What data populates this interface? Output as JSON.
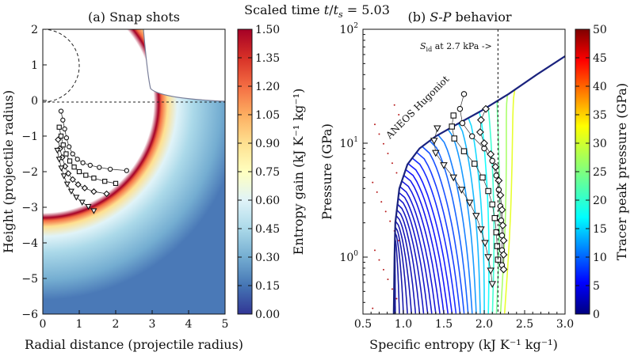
{
  "figure": {
    "suptitle": "Scaled time t/t_s = 5.03",
    "suptitle_parts": {
      "prefix": "Scaled time ",
      "t": "t",
      "slash": "/",
      "ts": "t",
      "ts_sub": "s",
      "suffix": " =  5.03"
    }
  },
  "chart_data": [
    {
      "type": "heatmap",
      "title": "(a) Snap shots",
      "xlabel": "Radial distance (projectile radius)",
      "ylabel": "Height (projectile radius)",
      "xlim": [
        0,
        5
      ],
      "ylim": [
        -6,
        2
      ],
      "xticks": [
        "0",
        "1",
        "2",
        "3",
        "4",
        "5"
      ],
      "yticks": [
        "2",
        "1",
        "0",
        "−1",
        "−2",
        "−3",
        "−4",
        "−5",
        "−6"
      ],
      "colorbar": {
        "label": "Entropy gain (kJ K⁻¹ kg⁻¹)",
        "range": [
          0,
          1.5
        ],
        "ticks": [
          "1.50",
          "1.35",
          "1.20",
          "1.05",
          "0.90",
          "0.75",
          "0.60",
          "0.45",
          "0.30",
          "0.15",
          "0.00"
        ],
        "colormap": "RdYlBu_r"
      },
      "tracer_sets": [
        {
          "marker": "circle",
          "points": [
            [
              0.5,
              -0.3
            ],
            [
              0.55,
              -0.55
            ],
            [
              0.6,
              -0.8
            ],
            [
              0.65,
              -1.05
            ],
            [
              0.72,
              -1.3
            ],
            [
              0.82,
              -1.5
            ],
            [
              0.95,
              -1.65
            ],
            [
              1.1,
              -1.75
            ],
            [
              1.3,
              -1.82
            ],
            [
              1.55,
              -1.88
            ],
            [
              1.85,
              -1.93
            ],
            [
              2.3,
              -1.97
            ]
          ]
        },
        {
          "marker": "square",
          "points": [
            [
              0.45,
              -0.75
            ],
            [
              0.5,
              -1.0
            ],
            [
              0.56,
              -1.25
            ],
            [
              0.64,
              -1.5
            ],
            [
              0.74,
              -1.7
            ],
            [
              0.86,
              -1.87
            ],
            [
              1.0,
              -2.0
            ],
            [
              1.18,
              -2.1
            ],
            [
              1.4,
              -2.18
            ],
            [
              1.7,
              -2.27
            ],
            [
              2.0,
              -2.33
            ]
          ]
        },
        {
          "marker": "diamond",
          "points": [
            [
              0.42,
              -1.1
            ],
            [
              0.47,
              -1.35
            ],
            [
              0.53,
              -1.6
            ],
            [
              0.61,
              -1.85
            ],
            [
              0.7,
              -2.05
            ],
            [
              0.82,
              -2.22
            ],
            [
              0.97,
              -2.36
            ],
            [
              1.15,
              -2.46
            ],
            [
              1.4,
              -2.56
            ],
            [
              1.75,
              -2.62
            ]
          ]
        },
        {
          "marker": "triangle",
          "points": [
            [
              0.4,
              -1.4
            ],
            [
              0.45,
              -1.65
            ],
            [
              0.51,
              -1.9
            ],
            [
              0.58,
              -2.12
            ],
            [
              0.67,
              -2.35
            ],
            [
              0.78,
              -2.55
            ],
            [
              0.92,
              -2.72
            ],
            [
              1.08,
              -2.86
            ],
            [
              1.25,
              -2.98
            ],
            [
              1.4,
              -3.1
            ]
          ]
        }
      ],
      "outer_profile": "crater-lip"
    },
    {
      "type": "line",
      "title": "(b) S-P behavior",
      "title_parts": {
        "prefix": "(b) ",
        "s": "S",
        "dash": "-",
        "p": "P",
        "suffix": " behavior"
      },
      "xlabel": "Specific entropy (kJ K⁻¹ kg⁻¹)",
      "ylabel": "Pressure (GPa)",
      "xlim": [
        0.5,
        3.0
      ],
      "ylim_log10": [
        -0.5,
        2
      ],
      "y_scale": "log",
      "xticks": [
        "0.5",
        "1.0",
        "1.5",
        "2.0",
        "2.5",
        "3.0"
      ],
      "yticks": [
        {
          "base": "10",
          "exp": "2",
          "value": 100
        },
        {
          "base": "10",
          "exp": "1",
          "value": 10
        },
        {
          "base": "10",
          "exp": "0",
          "value": 1
        }
      ],
      "annotations": {
        "hugoniot": "ANEOS Hugoniot",
        "sid_prefix": "S",
        "sid_sub": "id",
        "sid_suffix": " at 2.7 kPa ->",
        "sid_x": 2.17
      },
      "hugoniot": [
        [
          0.88,
          0.3
        ],
        [
          0.89,
          1.0
        ],
        [
          0.9,
          2.0
        ],
        [
          0.95,
          4.0
        ],
        [
          1.05,
          6.5
        ],
        [
          1.2,
          9.0
        ],
        [
          1.4,
          11.5
        ],
        [
          1.65,
          14.5
        ],
        [
          1.95,
          19.0
        ],
        [
          2.3,
          27.0
        ],
        [
          2.65,
          40.0
        ],
        [
          3.0,
          58.0
        ]
      ],
      "colorbar": {
        "label": "Tracer peak pressure (GPa)",
        "range": [
          0,
          50
        ],
        "ticks": [
          "50",
          "45",
          "40",
          "35",
          "30",
          "25",
          "20",
          "15",
          "10",
          "5",
          "0"
        ],
        "colormap": "jet"
      },
      "marker_series": [
        {
          "marker": "circle",
          "points": [
            [
              1.75,
              27
            ],
            [
              1.7,
              20
            ],
            [
              1.73,
              15
            ],
            [
              1.85,
              11.5
            ],
            [
              2.0,
              9.0
            ],
            [
              2.1,
              7.0
            ],
            [
              2.15,
              5.2
            ],
            [
              2.18,
              3.9
            ],
            [
              2.2,
              2.8
            ],
            [
              2.21,
              2.1
            ],
            [
              2.22,
              1.55
            ],
            [
              2.22,
              1.15
            ],
            [
              2.22,
              0.85
            ]
          ]
        },
        {
          "marker": "square",
          "points": [
            [
              1.62,
              17.5
            ],
            [
              1.6,
              14
            ],
            [
              1.63,
              11
            ],
            [
              1.75,
              8.5
            ],
            [
              1.88,
              6.6
            ],
            [
              1.98,
              5.0
            ],
            [
              2.05,
              3.8
            ],
            [
              2.1,
              2.9
            ],
            [
              2.13,
              2.2
            ],
            [
              2.15,
              1.65
            ],
            [
              2.16,
              1.25
            ],
            [
              2.17,
              0.95
            ]
          ]
        },
        {
          "marker": "diamond",
          "points": [
            [
              2.02,
              20
            ],
            [
              1.96,
              16
            ],
            [
              1.95,
              12.5
            ],
            [
              2.0,
              10
            ],
            [
              2.08,
              8.0
            ],
            [
              2.14,
              6.2
            ],
            [
              2.18,
              4.7
            ],
            [
              2.2,
              3.5
            ],
            [
              2.22,
              2.6
            ],
            [
              2.23,
              1.9
            ],
            [
              2.24,
              1.4
            ],
            [
              2.24,
              1.05
            ],
            [
              2.24,
              0.78
            ]
          ]
        },
        {
          "marker": "triangle",
          "points": [
            [
              1.42,
              13.5
            ],
            [
              1.38,
              10.5
            ],
            [
              1.4,
              8.2
            ],
            [
              1.5,
              6.4
            ],
            [
              1.62,
              5.0
            ],
            [
              1.72,
              3.9
            ],
            [
              1.82,
              3.0
            ],
            [
              1.9,
              2.3
            ],
            [
              1.96,
              1.75
            ],
            [
              2.01,
              1.33
            ],
            [
              2.05,
              1.0
            ],
            [
              2.08,
              0.76
            ],
            [
              2.1,
              0.58
            ]
          ]
        }
      ]
    }
  ]
}
